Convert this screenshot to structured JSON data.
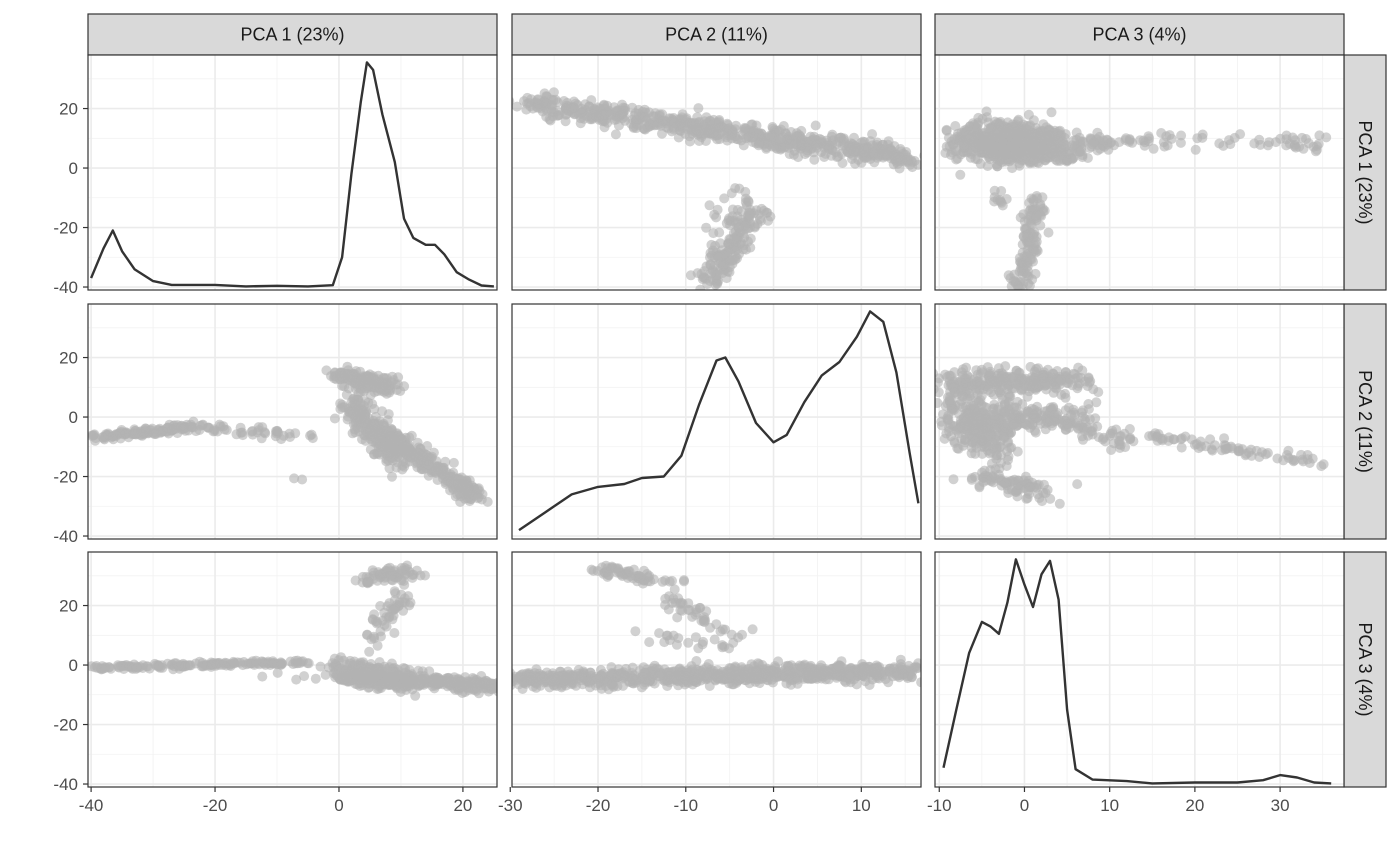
{
  "chart_data": {
    "type": "scatter",
    "layout": "pairs-matrix",
    "variables": [
      "PCA 1 (23%)",
      "PCA 2 (11%)",
      "PCA 3 (4%)"
    ],
    "axis_ranges": {
      "PCA 1 (23%)": [
        -40.5,
        25.5
      ],
      "PCA 2 (11%)": [
        -29.8,
        16.8
      ],
      "PCA 3 (4%)": [
        -10.5,
        37.5
      ]
    },
    "x_ticks": {
      "PCA 1 (23%)": [
        -40,
        -20,
        0,
        20
      ],
      "PCA 2 (11%)": [
        -30,
        -20,
        -10,
        0,
        10
      ],
      "PCA 3 (4%)": [
        -10,
        0,
        10,
        20,
        30
      ]
    },
    "y_ticks": [
      -40,
      -20,
      0,
      20
    ],
    "y_range": [
      -41,
      38
    ],
    "grid": true,
    "point_color": "#b3b3b3",
    "line_color": "#333333",
    "strip_fill": "#d9d9d9",
    "diagonal_density_curves": {
      "PCA 1 (23%)": [
        [
          -40,
          -37
        ],
        [
          -38,
          -27
        ],
        [
          -36.5,
          -21
        ],
        [
          -35,
          -28
        ],
        [
          -33,
          -34
        ],
        [
          -30,
          -38
        ],
        [
          -27,
          -39.3
        ],
        [
          -20,
          -39.3
        ],
        [
          -15,
          -39.8
        ],
        [
          -10,
          -39.6
        ],
        [
          -5,
          -39.8
        ],
        [
          -1,
          -39.4
        ],
        [
          0.5,
          -30
        ],
        [
          2,
          -2
        ],
        [
          3.5,
          22
        ],
        [
          4.5,
          35.5
        ],
        [
          5.5,
          33
        ],
        [
          7,
          18
        ],
        [
          9,
          2
        ],
        [
          10.5,
          -17
        ],
        [
          12,
          -23.5
        ],
        [
          14,
          -25.8
        ],
        [
          15.5,
          -25.8
        ],
        [
          17,
          -29
        ],
        [
          19,
          -35
        ],
        [
          21,
          -37.5
        ],
        [
          23,
          -39.5
        ],
        [
          25,
          -39.8
        ]
      ],
      "PCA 2 (11%)": [
        [
          -29,
          -38
        ],
        [
          -26,
          -32
        ],
        [
          -23,
          -26
        ],
        [
          -20,
          -23.5
        ],
        [
          -17,
          -22.5
        ],
        [
          -15,
          -20.5
        ],
        [
          -12.5,
          -20
        ],
        [
          -10.5,
          -13
        ],
        [
          -8.5,
          4
        ],
        [
          -6.5,
          19
        ],
        [
          -5.5,
          20
        ],
        [
          -4,
          12
        ],
        [
          -2,
          -2
        ],
        [
          0,
          -8.5
        ],
        [
          1.5,
          -6
        ],
        [
          3.5,
          5
        ],
        [
          5.5,
          14
        ],
        [
          7.5,
          18.5
        ],
        [
          9.5,
          27
        ],
        [
          11,
          35.5
        ],
        [
          12.5,
          32
        ],
        [
          14,
          15
        ],
        [
          15.5,
          -12
        ],
        [
          16.5,
          -29
        ]
      ],
      "PCA 3 (4%)": [
        [
          -9.5,
          -34.5
        ],
        [
          -8,
          -15
        ],
        [
          -6.5,
          4
        ],
        [
          -5,
          14.5
        ],
        [
          -4,
          13
        ],
        [
          -3,
          10.5
        ],
        [
          -2,
          21
        ],
        [
          -1,
          35.5
        ],
        [
          0,
          27
        ],
        [
          1,
          19.5
        ],
        [
          2,
          30.5
        ],
        [
          3,
          35
        ],
        [
          4,
          22
        ],
        [
          5,
          -15
        ],
        [
          6,
          -35
        ],
        [
          8,
          -38.5
        ],
        [
          12,
          -39
        ],
        [
          15,
          -39.8
        ],
        [
          20,
          -39.5
        ],
        [
          25,
          -39.5
        ],
        [
          28,
          -38.7
        ],
        [
          30,
          -37
        ],
        [
          32,
          -37.8
        ],
        [
          34,
          -39.5
        ],
        [
          36,
          -39.8
        ]
      ]
    },
    "scatter_clusters": {
      "r0c1": [
        {
          "x": [
            -28,
            14
          ],
          "y": [
            22,
            4
          ],
          "jx": 4,
          "jy": 3.5,
          "n": 650
        },
        {
          "x": [
            -7.5,
            -2
          ],
          "y": [
            -38,
            -14
          ],
          "jx": 2,
          "jy": 4,
          "n": 150
        },
        {
          "x": [
            -4,
            -6
          ],
          "y": [
            -8,
            -20
          ],
          "jx": 3,
          "jy": 4,
          "n": 20
        },
        {
          "x": [
            13,
            16
          ],
          "y": [
            4,
            2
          ],
          "jx": 1,
          "jy": 2,
          "n": 20
        }
      ],
      "r0c2": [
        {
          "x": [
            -6,
            2
          ],
          "y": [
            9,
            9
          ],
          "jx": 4,
          "jy": 6,
          "n": 500
        },
        {
          "x": [
            -4,
            4
          ],
          "y": [
            6,
            6
          ],
          "jx": 4,
          "jy": 4,
          "n": 250
        },
        {
          "x": [
            -0.5,
            1.5
          ],
          "y": [
            -40,
            -10
          ],
          "jx": 1.2,
          "jy": 3,
          "n": 120
        },
        {
          "x": [
            4,
            14
          ],
          "y": [
            8,
            9
          ],
          "jx": 1.5,
          "jy": 3,
          "n": 60
        },
        {
          "x": [
            14,
            35
          ],
          "y": [
            10,
            8
          ],
          "jx": 1.5,
          "jy": 3,
          "n": 50
        },
        {
          "x": [
            -3,
            -3
          ],
          "y": [
            -10,
            -10
          ],
          "jx": 1,
          "jy": 3,
          "n": 10
        }
      ],
      "r1c0": [
        {
          "x": [
            -40,
            -22
          ],
          "y": [
            -7,
            -3
          ],
          "jx": 1,
          "jy": 1.5,
          "n": 120
        },
        {
          "x": [
            -22,
            -3
          ],
          "y": [
            -4,
            -6
          ],
          "jx": 1.5,
          "jy": 2,
          "n": 40
        },
        {
          "x": [
            0,
            9
          ],
          "y": [
            14,
            10
          ],
          "jx": 2,
          "jy": 3,
          "n": 150
        },
        {
          "x": [
            2,
            10
          ],
          "y": [
            5,
            -15
          ],
          "jx": 2.5,
          "jy": 5,
          "n": 250
        },
        {
          "x": [
            8,
            22
          ],
          "y": [
            -6,
            -27
          ],
          "jx": 2,
          "jy": 2.5,
          "n": 250
        },
        {
          "x": [
            -9,
            -4
          ],
          "y": [
            -19,
            -22
          ],
          "jx": 1,
          "jy": 1,
          "n": 2
        }
      ],
      "r1c2": [
        {
          "x": [
            -9,
            6
          ],
          "y": [
            12,
            12
          ],
          "jx": 4,
          "jy": 4,
          "n": 250
        },
        {
          "x": [
            -9,
            -2
          ],
          "y": [
            2,
            -8
          ],
          "jx": 2,
          "jy": 10,
          "n": 250
        },
        {
          "x": [
            -6,
            4
          ],
          "y": [
            -20,
            -26
          ],
          "jx": 2.5,
          "jy": 3,
          "n": 80
        },
        {
          "x": [
            -4,
            4
          ],
          "y": [
            0,
            0
          ],
          "jx": 4,
          "jy": 5,
          "n": 150
        },
        {
          "x": [
            4,
            13
          ],
          "y": [
            0,
            -10
          ],
          "jx": 2,
          "jy": 4,
          "n": 60
        },
        {
          "x": [
            14,
            36
          ],
          "y": [
            -6,
            -16
          ],
          "jx": 1.5,
          "jy": 2,
          "n": 70
        }
      ],
      "r2c0": [
        {
          "x": [
            -40,
            -5
          ],
          "y": [
            -1,
            1
          ],
          "jx": 1,
          "jy": 1,
          "n": 150
        },
        {
          "x": [
            0,
            25
          ],
          "y": [
            -4,
            -7
          ],
          "jx": 3,
          "jy": 2,
          "n": 400
        },
        {
          "x": [
            0,
            12
          ],
          "y": [
            0,
            -6
          ],
          "jx": 3,
          "jy": 4,
          "n": 200
        },
        {
          "x": [
            4,
            12
          ],
          "y": [
            29,
            32
          ],
          "jx": 2,
          "jy": 2.5,
          "n": 60
        },
        {
          "x": [
            5,
            11
          ],
          "y": [
            8,
            24
          ],
          "jx": 1.5,
          "jy": 5,
          "n": 50
        },
        {
          "x": [
            -12,
            -3
          ],
          "y": [
            -4,
            -4
          ],
          "jx": 2,
          "jy": 1,
          "n": 5
        }
      ],
      "r2c1": [
        {
          "x": [
            -29,
            16
          ],
          "y": [
            -5,
            -2
          ],
          "jx": 3,
          "jy": 3,
          "n": 800
        },
        {
          "x": [
            -20,
            -12
          ],
          "y": [
            32,
            28
          ],
          "jx": 2,
          "jy": 2.5,
          "n": 60
        },
        {
          "x": [
            -12,
            -3
          ],
          "y": [
            22,
            8
          ],
          "jx": 1.5,
          "jy": 3,
          "n": 40
        },
        {
          "x": [
            -15,
            -5
          ],
          "y": [
            10,
            6
          ],
          "jx": 2,
          "jy": 2,
          "n": 20
        }
      ]
    }
  }
}
